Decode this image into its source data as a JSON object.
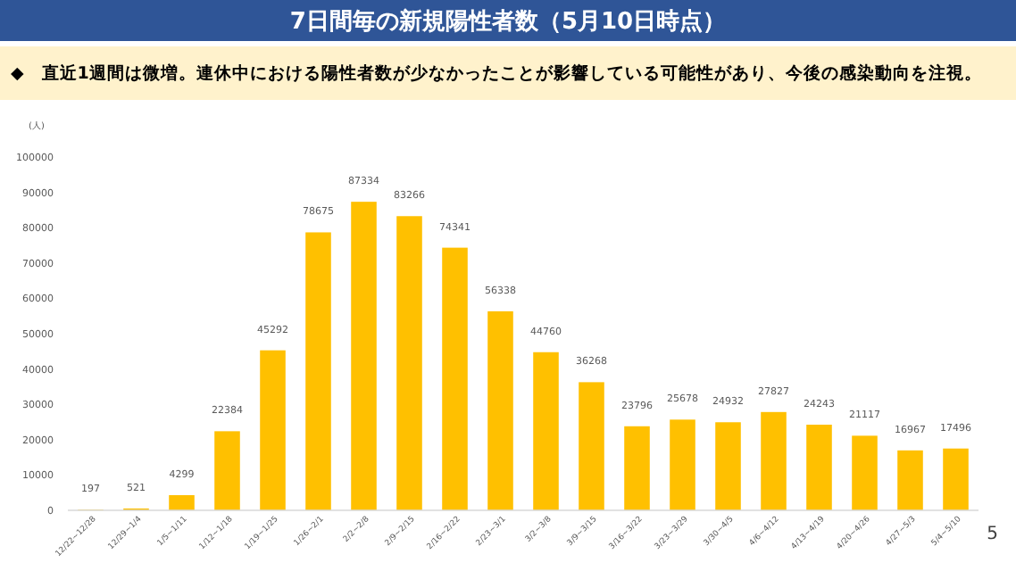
{
  "chart_data": {
    "type": "bar",
    "title": "7日間毎の新規陽性者数（5月10日時点）",
    "subtitle": "◆　直近1週間は微増。連休中における陽性者数が少なかったことが影響している可能性があり、今後の感染動向を注視。",
    "ylabel": "(人)",
    "categories": [
      "12/22~12/28",
      "12/29~1/4",
      "1/5~1/11",
      "1/12~1/18",
      "1/19~1/25",
      "1/26~2/1",
      "2/2~2/8",
      "2/9~2/15",
      "2/16~2/22",
      "2/23~3/1",
      "3/2~3/8",
      "3/9~3/15",
      "3/16~3/22",
      "3/23~3/29",
      "3/30~4/5",
      "4/6~4/12",
      "4/13~4/19",
      "4/20~4/26",
      "4/27~5/3",
      "5/4~5/10"
    ],
    "series": [
      {
        "color": "#ffc000",
        "values": [
          197,
          521,
          4299,
          22384,
          45292,
          78675,
          87334,
          83266,
          74341,
          56338,
          44760,
          36268,
          23796,
          25678,
          24932,
          27827,
          24243,
          21117,
          16967,
          17496
        ]
      }
    ],
    "ylim": [
      0,
      100000
    ],
    "yticks": [
      0,
      10000,
      20000,
      30000,
      40000,
      50000,
      60000,
      70000,
      80000,
      90000,
      100000
    ],
    "data_labels": true,
    "grid": false,
    "annotations": [
      "5"
    ]
  }
}
